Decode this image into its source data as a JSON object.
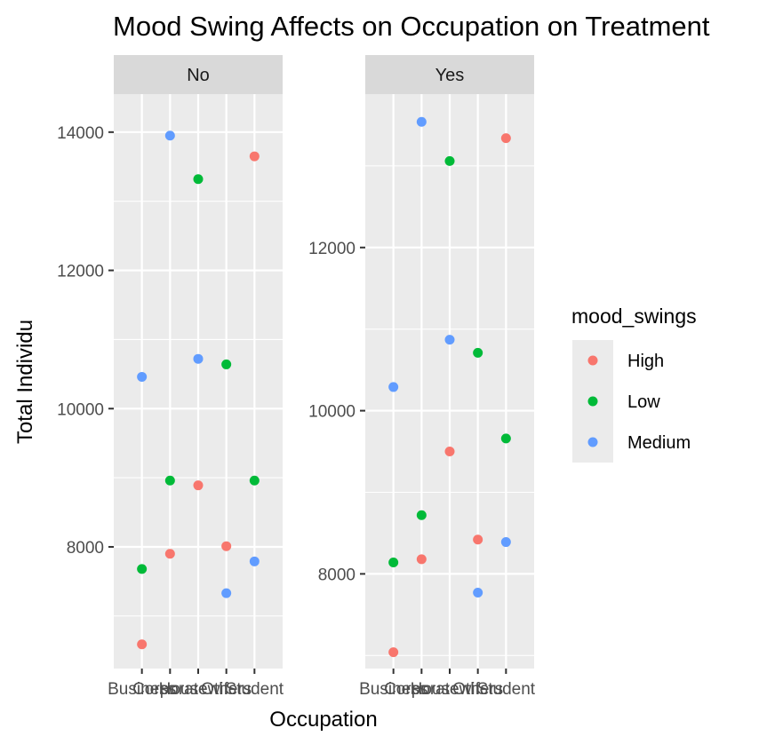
{
  "chart_data": {
    "type": "scatter",
    "title": "Mood Swing Affects on Occupation on Treatment",
    "xlabel": "Occupation",
    "ylabel": "Total Individu",
    "categories": [
      "Business",
      "Corporate",
      "Housewife",
      "Others",
      "Student"
    ],
    "legend": {
      "title": "mood_swings",
      "position": "right",
      "entries": [
        {
          "name": "High",
          "color": "#F8766D"
        },
        {
          "name": "Low",
          "color": "#00BA38"
        },
        {
          "name": "Medium",
          "color": "#619CFF"
        }
      ]
    },
    "grid": true,
    "facets": [
      {
        "label": "No",
        "ylim": [
          6240,
          14550
        ],
        "yticks": [
          8000,
          10000,
          12000,
          14000
        ],
        "yticklabels": [
          "8000",
          "10000",
          "12000",
          "14000"
        ],
        "series": [
          {
            "name": "High",
            "values": [
              6590,
              7900,
              8890,
              8010,
              13650
            ]
          },
          {
            "name": "Low",
            "values": [
              7680,
              8960,
              13320,
              10640,
              8960
            ]
          },
          {
            "name": "Medium",
            "values": [
              10460,
              13950,
              10720,
              7330,
              7790
            ]
          }
        ]
      },
      {
        "label": "Yes",
        "ylim": [
          6840,
          13880
        ],
        "yticks": [
          8000,
          10000,
          12000
        ],
        "yticklabels": [
          "8000",
          "10000",
          "12000"
        ],
        "series": [
          {
            "name": "High",
            "values": [
              7040,
              8180,
              9500,
              8420,
              13340
            ]
          },
          {
            "name": "Low",
            "values": [
              8140,
              8720,
              13060,
              10710,
              9660
            ]
          },
          {
            "name": "Medium",
            "values": [
              10290,
              13540,
              10870,
              7770,
              8390
            ]
          }
        ]
      }
    ]
  }
}
